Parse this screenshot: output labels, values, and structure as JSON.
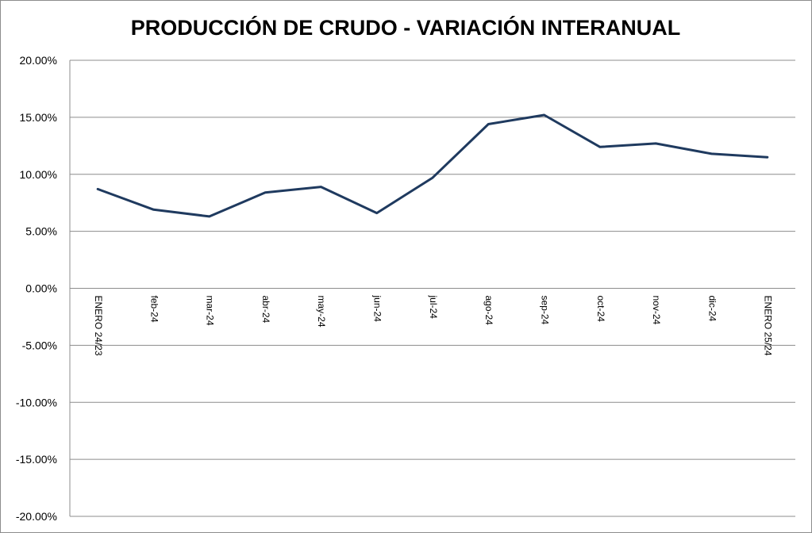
{
  "chart_data": {
    "type": "line",
    "title": "PRODUCCIÓN DE CRUDO - VARIACIÓN INTERANUAL",
    "xlabel": "",
    "ylabel": "",
    "categories": [
      "ENERO 24/23",
      "feb-24",
      "mar-24",
      "abr-24",
      "may-24",
      "jun-24",
      "jul-24",
      "ago-24",
      "sep-24",
      "oct-24",
      "nov-24",
      "dic-24",
      "ENERO 25/24"
    ],
    "series": [
      {
        "values": [
          8.7,
          6.9,
          6.3,
          8.4,
          8.9,
          6.6,
          9.7,
          14.4,
          15.2,
          12.4,
          12.7,
          11.8,
          11.5
        ],
        "color": "#1f3a5f"
      }
    ],
    "ylim": [
      -20,
      20
    ],
    "yticks": [
      "20.00%",
      "15.00%",
      "10.00%",
      "5.00%",
      "0.00%",
      "-5.00%",
      "-10.00%",
      "-15.00%",
      "-20.00%"
    ],
    "ytick_values": [
      20,
      15,
      10,
      5,
      0,
      -5,
      -10,
      -15,
      -20
    ],
    "grid": true,
    "legend": "none"
  }
}
